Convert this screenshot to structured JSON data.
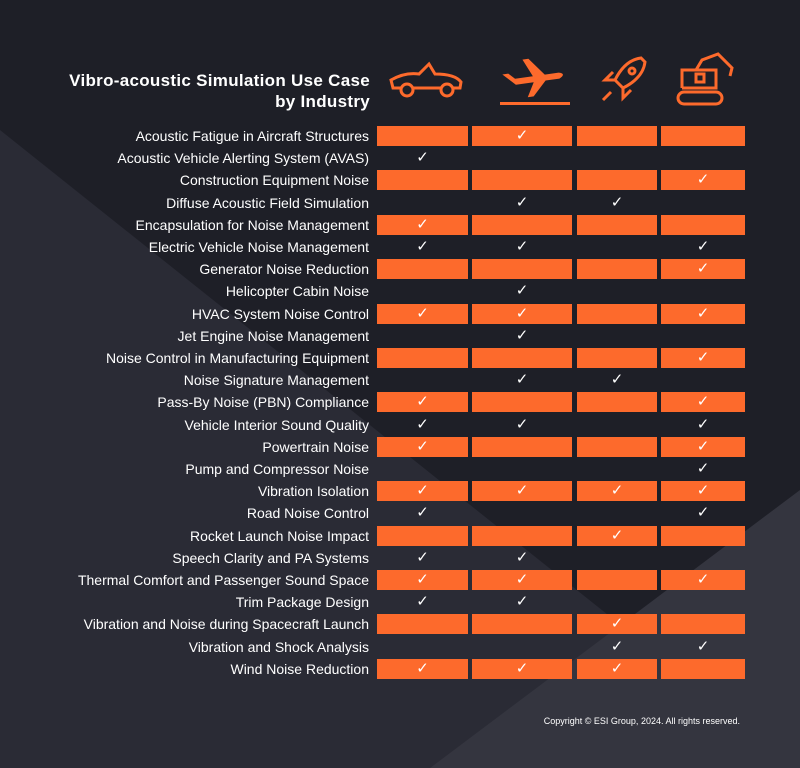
{
  "title": [
    "Vibro-acoustic  Simulation  Use Case",
    "by Industry"
  ],
  "copyright": "Copyright © ESI Group, 2024.  All rights reserved.",
  "banded": true,
  "rows": [
    {
      "label": "Acoustic Fatigue in Aircraft Structures",
      "cells": [
        null,
        "✓",
        null,
        null
      ]
    },
    {
      "label": "Acoustic Vehicle Alerting System (AVAS)",
      "cells": [
        "✓",
        null,
        null,
        null
      ]
    },
    {
      "label": "Construction Equipment Noise",
      "cells": [
        null,
        null,
        null,
        "✓"
      ]
    },
    {
      "label": "Diffuse Acoustic Field Simulation",
      "cells": [
        null,
        "✓",
        "✓",
        null
      ]
    },
    {
      "label": "Encapsulation for Noise Management",
      "cells": [
        "✓",
        null,
        null,
        null
      ]
    },
    {
      "label": "Electric Vehicle Noise Management",
      "cells": [
        "✓",
        "✓",
        null,
        "✓"
      ]
    },
    {
      "label": "Generator Noise Reduction",
      "cells": [
        null,
        null,
        null,
        "✓"
      ]
    },
    {
      "label": "Helicopter Cabin Noise",
      "cells": [
        null,
        "✓",
        null,
        null
      ]
    },
    {
      "label": "HVAC System Noise Control",
      "cells": [
        "✓",
        "✓",
        null,
        "✓"
      ]
    },
    {
      "label": "Jet Engine Noise Management",
      "cells": [
        null,
        "✓",
        null,
        null
      ]
    },
    {
      "label": "Noise Control in Manufacturing Equipment",
      "cells": [
        null,
        null,
        null,
        "✓"
      ]
    },
    {
      "label": "Noise Signature Management",
      "cells": [
        null,
        "✓",
        "✓",
        null
      ]
    },
    {
      "label": "Pass-By Noise (PBN) Compliance",
      "cells": [
        "✓",
        null,
        null,
        "✓"
      ]
    },
    {
      "label": "Vehicle Interior Sound Quality",
      "cells": [
        "✓",
        "✓",
        null,
        "✓"
      ]
    },
    {
      "label": "Powertrain Noise",
      "cells": [
        "✓",
        null,
        null,
        "✓"
      ]
    },
    {
      "label": "Pump and Compressor Noise",
      "cells": [
        null,
        null,
        null,
        "✓"
      ]
    },
    {
      "label": "Vibration Isolation",
      "cells": [
        "✓",
        "✓",
        "✓",
        "✓"
      ]
    },
    {
      "label": "Road Noise Control",
      "cells": [
        "✓",
        null,
        null,
        "✓"
      ]
    },
    {
      "label": "Rocket Launch Noise Impact",
      "cells": [
        null,
        null,
        "✓",
        null
      ]
    },
    {
      "label": "Speech Clarity and PA Systems",
      "cells": [
        "✓",
        "✓",
        null,
        null
      ]
    },
    {
      "label": "Thermal Comfort and Passenger Sound Space",
      "cells": [
        "✓",
        "✓",
        null,
        "✓"
      ]
    },
    {
      "label": "Trim Package Design",
      "cells": [
        "✓",
        "✓",
        null,
        null
      ]
    },
    {
      "label": "Vibration and Noise during Spacecraft Launch",
      "cells": [
        null,
        null,
        "✓",
        null
      ]
    },
    {
      "label": "Vibration and Shock Analysis",
      "cells": [
        null,
        null,
        "✓",
        "✓"
      ]
    },
    {
      "label": "Wind Noise Reduction",
      "cells": [
        "✓",
        "✓",
        "✓",
        null
      ]
    }
  ]
}
